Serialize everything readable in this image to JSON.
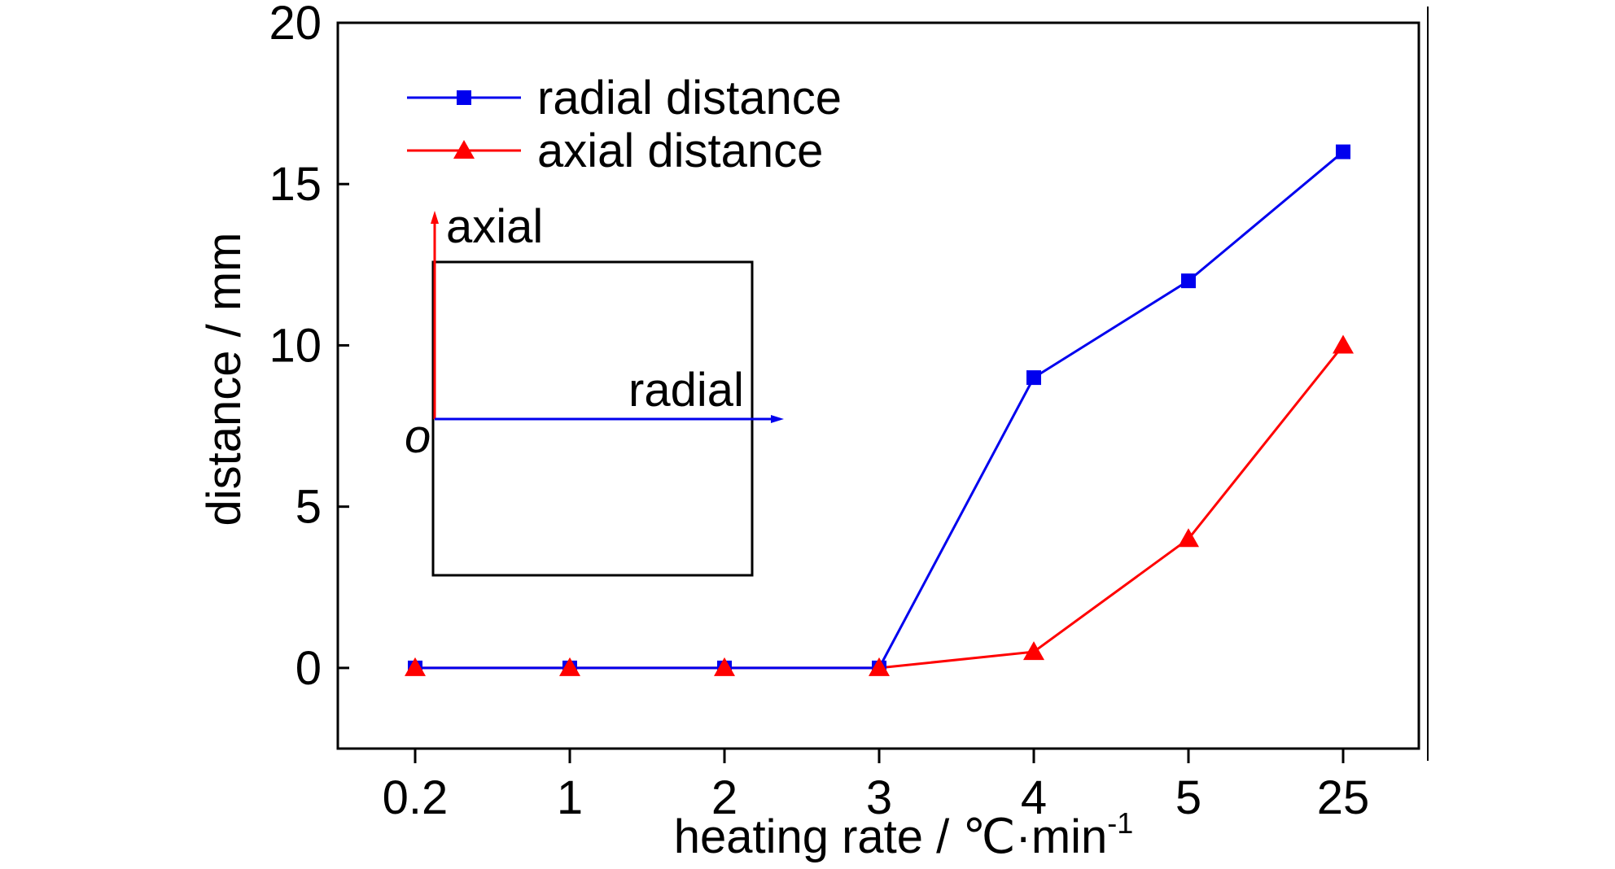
{
  "chart_data": {
    "type": "line",
    "categories": [
      "0.2",
      "1",
      "2",
      "3",
      "4",
      "5",
      "25"
    ],
    "xlabel": "heating rate / ℃·min",
    "xlabel_superscript": "-1",
    "ylabel": "distance / mm",
    "ylim": [
      -2.5,
      20
    ],
    "yticks": [
      0,
      5,
      10,
      15,
      20
    ],
    "grid": false,
    "legend_position": "top-left",
    "series": [
      {
        "name": "radial distance",
        "color": "#0000ee",
        "marker": "square",
        "values": [
          0,
          0,
          0,
          0,
          9,
          12,
          16
        ]
      },
      {
        "name": "axial distance",
        "color": "#ff0000",
        "marker": "triangle",
        "values": [
          0,
          0,
          0,
          0,
          0.5,
          4,
          10
        ]
      }
    ],
    "inset": {
      "axial_label": "axial",
      "radial_label": "radial",
      "origin_label": "o",
      "axial_color": "#ff0000",
      "radial_color": "#0000ee"
    }
  }
}
